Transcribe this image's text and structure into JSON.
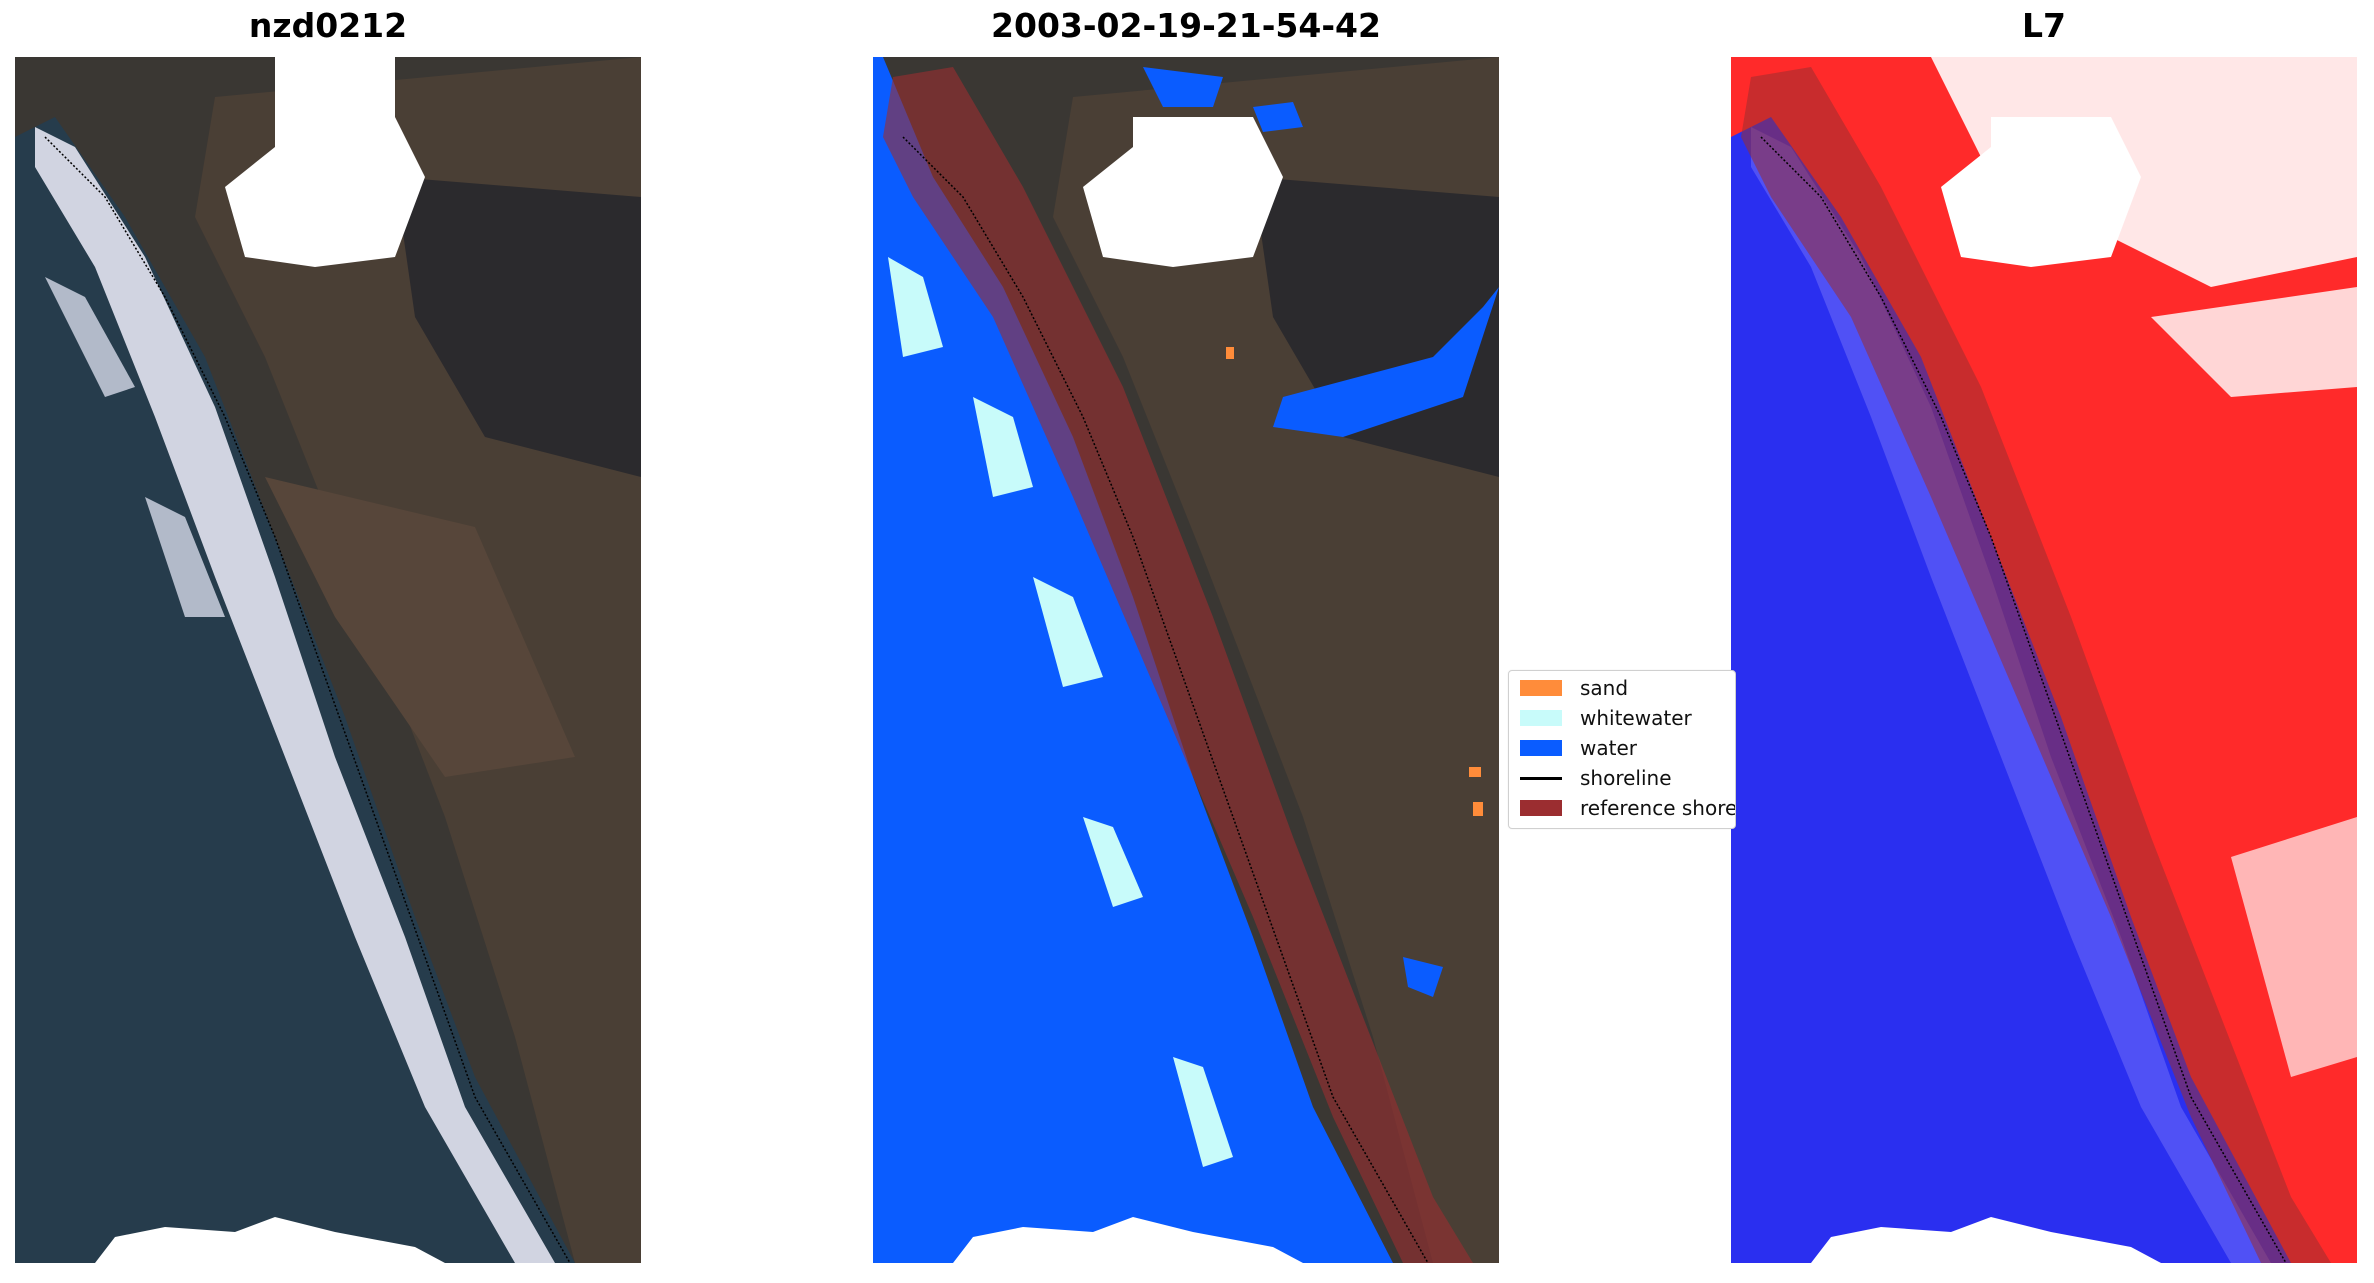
{
  "panels": [
    {
      "title": "nzd0212"
    },
    {
      "title": "2003-02-19-21-54-42"
    },
    {
      "title": "L7"
    }
  ],
  "legend": {
    "items": [
      {
        "label": "sand",
        "color": "#ff8c3a"
      },
      {
        "label": "whitewater",
        "color": "#c8fbfa"
      },
      {
        "label": "water",
        "color": "#0a5cff"
      },
      {
        "label": "shoreline",
        "color": "#000000"
      },
      {
        "label": "reference shoreline",
        "color": "#9b2d30"
      }
    ]
  }
}
